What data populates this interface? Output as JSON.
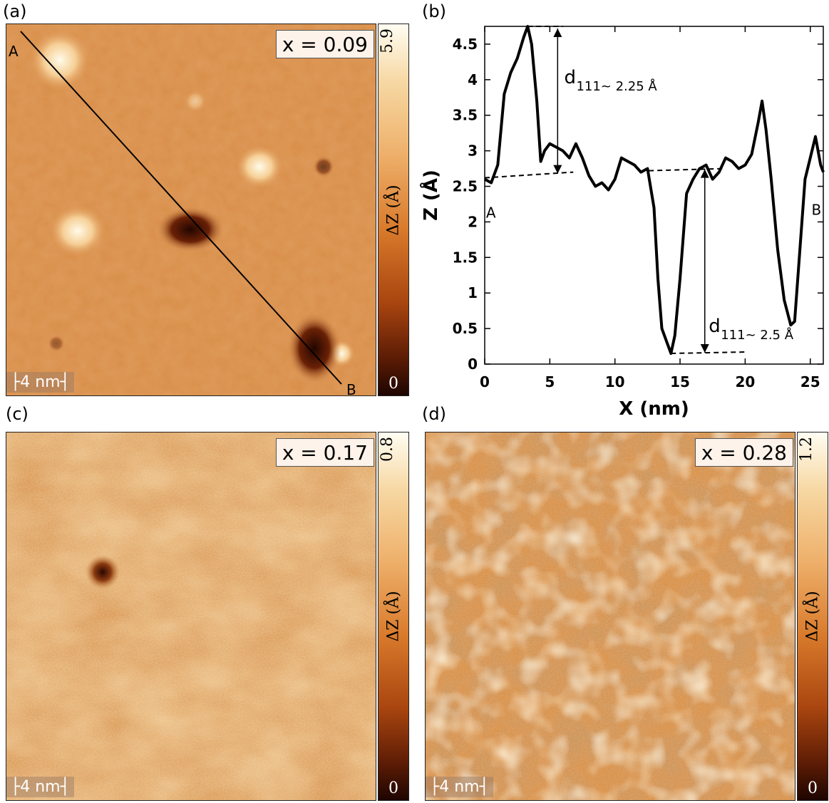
{
  "panels": {
    "a": {
      "label": "(a)",
      "x_value": "x = 0.09",
      "scale": "4 nm",
      "cbar_max": "5.9",
      "cbar_min": "0",
      "cbar_label": "ΔZ (Å)",
      "line_start": "A",
      "line_end": "B"
    },
    "b": {
      "label": "(b)"
    },
    "c": {
      "label": "(c)",
      "x_value": "x = 0.17",
      "scale": "4 nm",
      "cbar_max": "0.8",
      "cbar_min": "0",
      "cbar_label": "ΔZ (Å)"
    },
    "d": {
      "label": "(d)",
      "x_value": "x = 0.28",
      "scale": "4 nm",
      "cbar_max": "1.2",
      "cbar_min": "0",
      "cbar_label": "ΔZ (Å)"
    }
  },
  "colors": {
    "stm_base": "#d98e4a",
    "stm_light": "#fbe6c2",
    "stm_dark": "#3a0d02",
    "profile_line": "#000000"
  },
  "chart_data": {
    "type": "line",
    "xlabel": "X (nm)",
    "ylabel": "Z (Å)",
    "xlim": [
      0,
      26
    ],
    "ylim": [
      0,
      4.75
    ],
    "xticks": [
      0,
      5,
      10,
      15,
      20,
      25
    ],
    "yticks": [
      0,
      0.5,
      1,
      1.5,
      2,
      2.5,
      3,
      3.5,
      4,
      4.5
    ],
    "x": [
      0,
      0.5,
      1,
      1.5,
      2,
      2.5,
      3,
      3.3,
      3.6,
      4,
      4.3,
      4.6,
      5,
      5.5,
      6,
      6.5,
      7,
      7.5,
      8,
      8.5,
      9,
      9.5,
      10,
      10.5,
      11,
      11.5,
      12,
      12.5,
      13,
      13.3,
      13.6,
      14,
      14.3,
      14.6,
      15,
      15.5,
      16,
      16.5,
      17,
      17.5,
      18,
      18.5,
      19,
      19.5,
      20,
      20.5,
      21,
      21.3,
      21.6,
      22,
      22.5,
      23,
      23.5,
      23.8,
      24.2,
      24.6,
      25,
      25.4,
      25.8,
      26
    ],
    "y": [
      2.6,
      2.55,
      2.8,
      3.8,
      4.1,
      4.3,
      4.6,
      4.75,
      4.5,
      3.7,
      2.85,
      3.0,
      3.1,
      3.05,
      3.0,
      2.9,
      3.1,
      2.9,
      2.65,
      2.5,
      2.55,
      2.45,
      2.6,
      2.9,
      2.85,
      2.8,
      2.7,
      2.75,
      2.2,
      1.2,
      0.5,
      0.3,
      0.15,
      0.4,
      1.2,
      2.4,
      2.6,
      2.75,
      2.8,
      2.6,
      2.7,
      2.9,
      2.85,
      2.75,
      2.8,
      2.95,
      3.4,
      3.7,
      3.3,
      2.6,
      1.6,
      0.9,
      0.55,
      0.6,
      1.6,
      2.6,
      2.9,
      3.2,
      2.8,
      2.7
    ],
    "points": [
      "A",
      "B"
    ],
    "annotations": [
      {
        "sub": "111~ 2.25 Å",
        "main": "d"
      },
      {
        "sub": "111~ 2.5 Å",
        "main": "d"
      }
    ]
  }
}
